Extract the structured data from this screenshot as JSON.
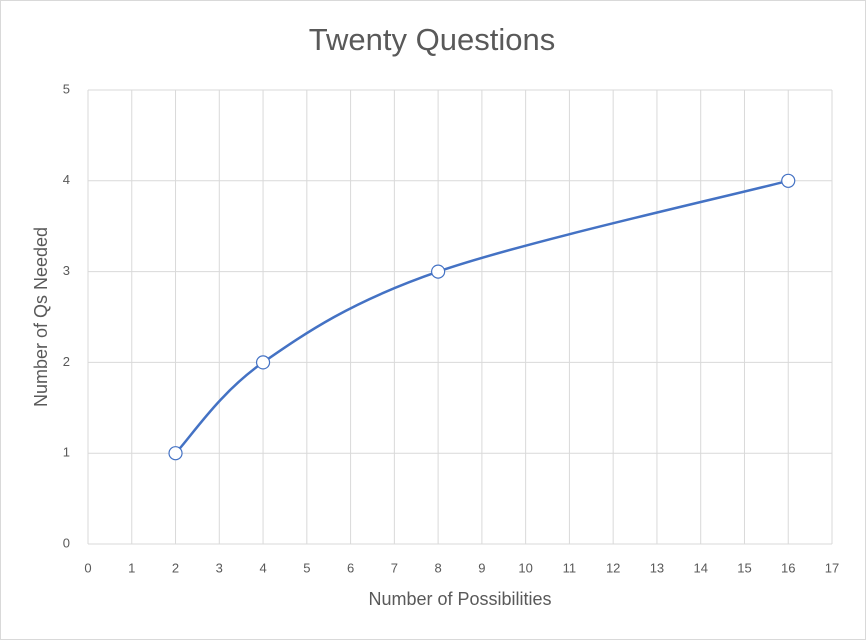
{
  "chart_data": {
    "type": "scatter",
    "title": "Twenty Questions",
    "x_label": "Number of Possibilities",
    "y_label": "Number of Qs Needed",
    "x": [
      2,
      4,
      8,
      16
    ],
    "values": [
      1,
      2,
      3,
      4
    ],
    "color": "#4472c4",
    "smooth": true,
    "marker": "circle",
    "grid": true,
    "xlim": [
      0,
      17
    ],
    "xticks": [
      0,
      1,
      2,
      3,
      4,
      5,
      6,
      7,
      8,
      9,
      10,
      11,
      12,
      13,
      14,
      15,
      16,
      17
    ],
    "ylim": [
      0,
      5
    ],
    "yticks": [
      0,
      1,
      2,
      3,
      4,
      5
    ]
  }
}
